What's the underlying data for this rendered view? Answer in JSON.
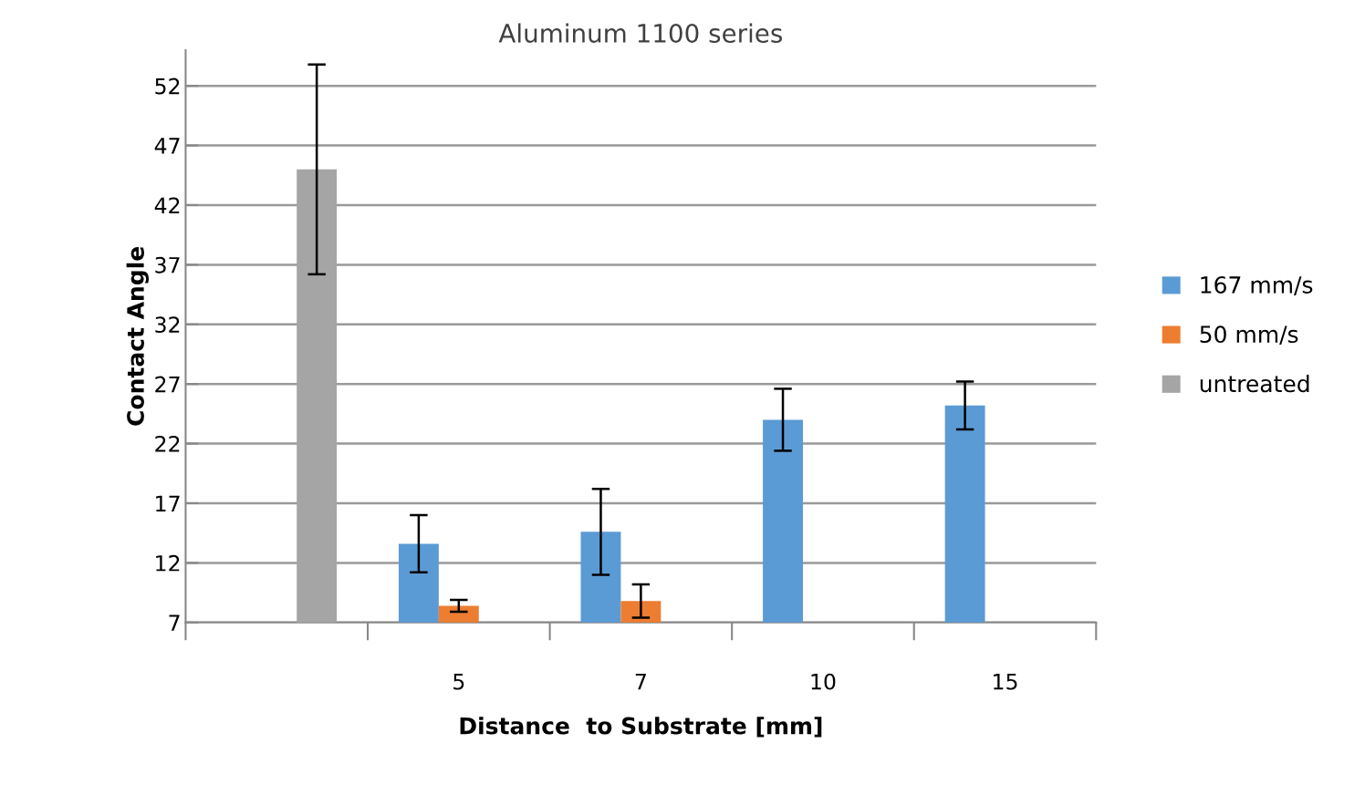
{
  "chart_data": {
    "type": "bar",
    "title": "Aluminum 1100 series",
    "xlabel": "Distance  to Substrate [mm]",
    "ylabel": "Contact Angle",
    "categories": [
      null,
      "5",
      "7",
      "10",
      "15"
    ],
    "series": [
      {
        "name": "167 mm/s",
        "color": "#5b9bd5",
        "values": [
          null,
          13.6,
          14.6,
          24.0,
          25.2
        ],
        "errors": [
          null,
          2.4,
          3.6,
          2.6,
          2.0
        ]
      },
      {
        "name": "50 mm/s",
        "color": "#ed7d31",
        "values": [
          null,
          8.4,
          8.8,
          null,
          null
        ],
        "errors": [
          null,
          0.5,
          1.4,
          null,
          null
        ]
      },
      {
        "name": "untreated",
        "color": "#a5a5a5",
        "values": [
          45.0,
          null,
          null,
          null,
          null
        ],
        "errors": [
          8.8,
          null,
          null,
          null,
          null
        ]
      }
    ],
    "ylim": [
      7,
      55
    ],
    "yticks": [
      7,
      12,
      17,
      22,
      27,
      32,
      37,
      42,
      47,
      52
    ],
    "grid": "y",
    "legend": "right"
  }
}
